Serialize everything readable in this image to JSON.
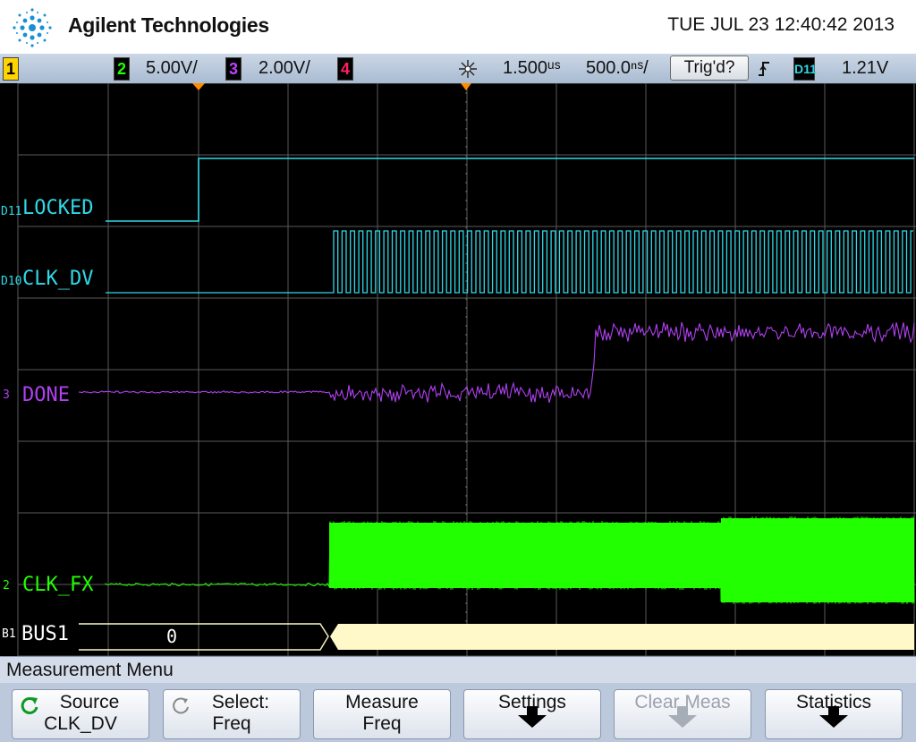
{
  "header": {
    "brand": "Agilent Technologies",
    "datetime": "TUE JUL 23 12:40:42 2013",
    "logo_icon": "agilent-spark-logo"
  },
  "statusbar": {
    "ch1": {
      "number": "1",
      "color": "#ffd400"
    },
    "ch2": {
      "number": "2",
      "scale": "5.00V/",
      "color": "#22ff00"
    },
    "ch3": {
      "number": "3",
      "scale": "2.00V/",
      "color": "#c040ff"
    },
    "ch4": {
      "number": "4",
      "color": "#ff2060"
    },
    "run_icon": "acquisition-spark-icon",
    "delay": "1.500ᵘˢ",
    "timebase": "500.0ⁿˢ/",
    "trigger_state": "Trig'd?",
    "trigger_edge_icon": "rising-edge-icon",
    "trigger_source": "D11",
    "trigger_level": "1.21V"
  },
  "traces": {
    "locked": {
      "id": "D11",
      "label": "LOCKED",
      "color": "#2fd9e8"
    },
    "clk_dv": {
      "id": "D10",
      "label": "CLK_DV",
      "color": "#2fd9e8"
    },
    "done": {
      "id": "3",
      "label": "DONE",
      "color": "#b040f0"
    },
    "clk_fx": {
      "id": "2",
      "label": "CLK_FX",
      "color": "#22ff00"
    },
    "bus": {
      "id": "B1",
      "label": "BUS1",
      "value": "0",
      "color": "#fff8c8"
    }
  },
  "menu": {
    "title": "Measurement Menu",
    "softkeys": [
      {
        "line1": "Source",
        "line2": "CLK_DV",
        "icon": "rotate-knob-icon"
      },
      {
        "line1": "Select:",
        "line2": "Freq",
        "icon": "rotate-knob-icon"
      },
      {
        "line1": "Measure",
        "line2": "Freq"
      },
      {
        "line1": "Settings",
        "line2": ""
      },
      {
        "line1": "Clear Meas",
        "line2": ""
      },
      {
        "line1": "Statistics",
        "line2": ""
      }
    ]
  }
}
